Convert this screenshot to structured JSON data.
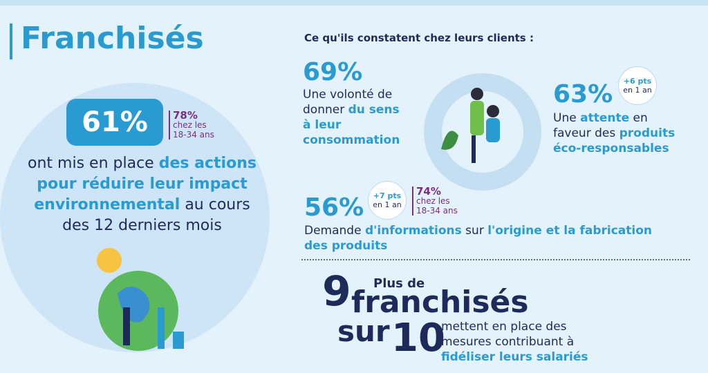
{
  "title": "Franchisés",
  "left": {
    "stat": "61%",
    "age_stat": "78%",
    "age_label_1": "chez les",
    "age_label_2": "18-34 ans",
    "description": [
      "ont mis en place ",
      "des actions pour réduire leur impact environnemental",
      " au cours des 12 derniers mois"
    ]
  },
  "right": {
    "heading": "Ce qu'ils constatent chez leurs clients :",
    "items": [
      {
        "stat": "69%",
        "text": [
          "Une volonté de  donner ",
          "du sens à leur consommation"
        ]
      },
      {
        "stat": "63%",
        "badge": [
          "+6 pts",
          "en 1 an"
        ],
        "text": [
          "Une ",
          "attente",
          " en faveur des ",
          "produits éco-responsables"
        ]
      },
      {
        "stat": "56%",
        "badge": [
          "+7 pts",
          "en 1 an"
        ],
        "age_stat": "74%",
        "age_label_1": "chez les",
        "age_label_2": "18-34 ans",
        "text": [
          "Demande ",
          "d'informations",
          " sur ",
          "l'origine et la fabrication des produits"
        ]
      }
    ]
  },
  "bottom": {
    "numerator": "9",
    "prefix": "Plus de",
    "subject": "franchisés",
    "connector": "sur",
    "denominator": "10",
    "text": [
      "mettent en place des mesures contribuant à ",
      "fidéliser leurs salariés"
    ]
  }
}
